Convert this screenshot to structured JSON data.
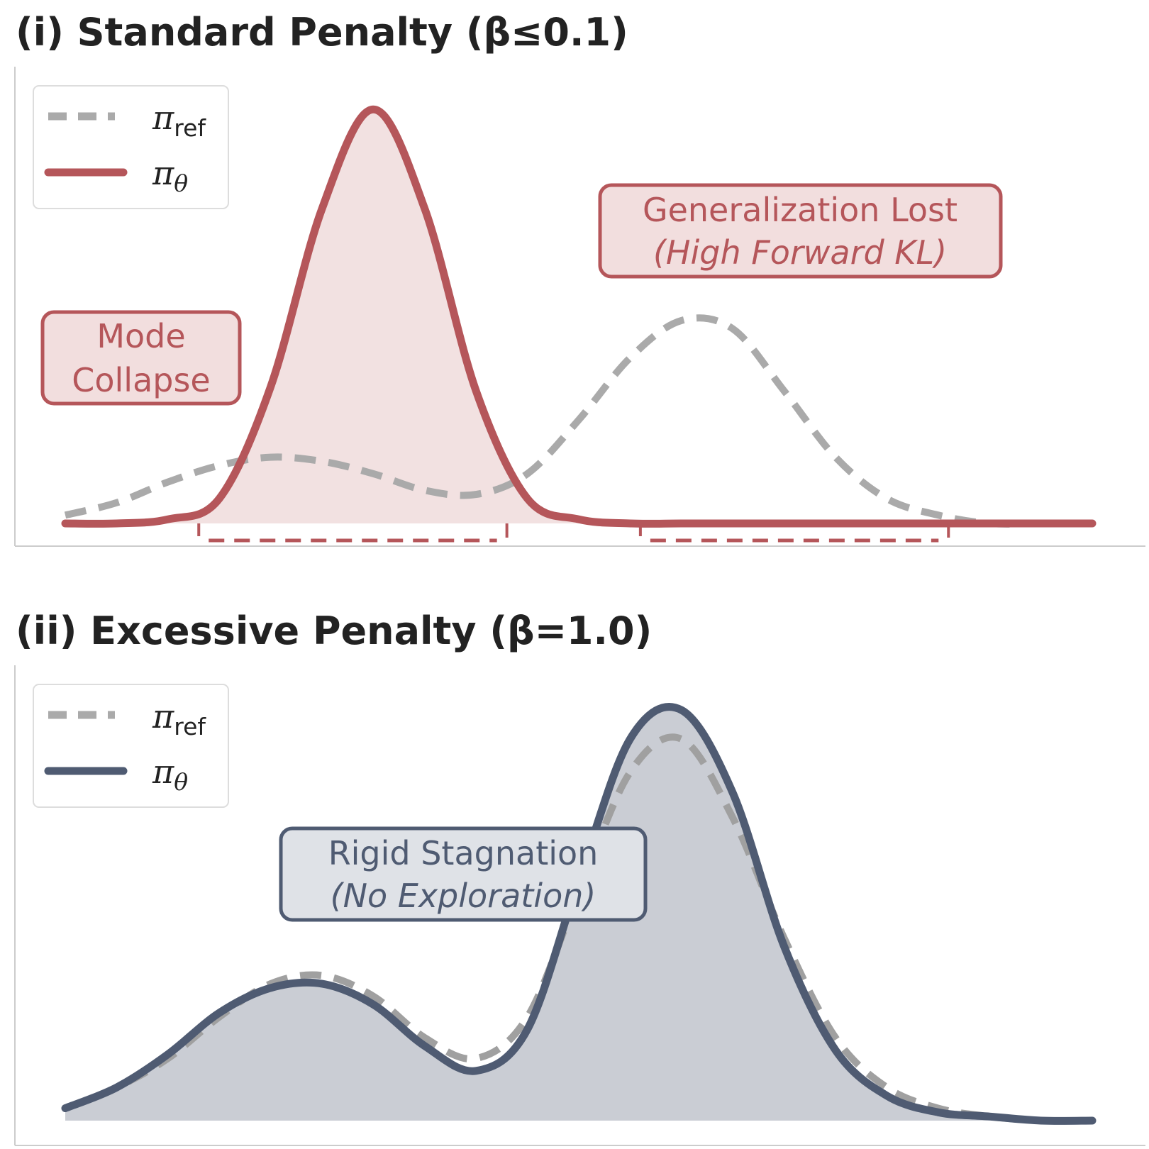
{
  "chart_data": [
    {
      "type": "line",
      "title": "(i) Standard Penalty (β≤0.1)",
      "xlim": [
        0,
        10
      ],
      "ylim": [
        0,
        1.05
      ],
      "grid": false,
      "legend_position": "top-left",
      "legend": [
        {
          "symbol": "π",
          "subscript": "ref",
          "style": "dashed",
          "color": "#aaaaaa"
        },
        {
          "symbol": "π",
          "subscript": "θ",
          "style": "solid",
          "color": "#b5565a"
        }
      ],
      "series": [
        {
          "key": "ref",
          "color": "#aaaaaa",
          "dashed": true,
          "x": [
            0.0,
            0.5,
            1.0,
            1.5,
            2.0,
            2.5,
            3.0,
            3.5,
            4.0,
            4.5,
            5.0,
            5.5,
            6.0,
            6.5,
            7.0,
            7.5,
            8.0,
            8.5,
            9.0,
            9.5,
            10.0
          ],
          "y": [
            0.02,
            0.05,
            0.1,
            0.14,
            0.16,
            0.15,
            0.12,
            0.08,
            0.07,
            0.12,
            0.25,
            0.4,
            0.49,
            0.47,
            0.32,
            0.16,
            0.06,
            0.02,
            0.0,
            0.0,
            0.0
          ]
        },
        {
          "key": "theta",
          "color": "#b5565a",
          "fill": "rgba(181,86,90,0.18)",
          "x": [
            0.0,
            0.5,
            1.0,
            1.5,
            2.0,
            2.5,
            3.0,
            3.5,
            4.0,
            4.5,
            5.0,
            5.5,
            6.0,
            6.5,
            7.0,
            7.5,
            8.0,
            8.5,
            9.0,
            9.5,
            10.0
          ],
          "y": [
            0.0,
            0.0,
            0.01,
            0.06,
            0.33,
            0.76,
            1.0,
            0.76,
            0.32,
            0.06,
            0.01,
            0.0,
            0.0,
            0.0,
            0.0,
            0.0,
            0.0,
            0.0,
            0.0,
            0.0,
            0.0
          ]
        }
      ],
      "brackets": [
        [
          1.3,
          4.3
        ],
        [
          5.6,
          8.6
        ]
      ],
      "annotations": [
        {
          "key": "mode",
          "lines": [
            "Mode",
            "Collapse"
          ],
          "italic_lines": [],
          "color": "#b5565a"
        },
        {
          "key": "gen",
          "lines": [
            "Generalization Lost"
          ],
          "italic_lines": [
            "(High Forward KL)"
          ],
          "color": "#b5565a"
        }
      ]
    },
    {
      "type": "line",
      "title": "(ii) Excessive Penalty (β=1.0)",
      "xlim": [
        0,
        10
      ],
      "ylim": [
        0,
        1.05
      ],
      "grid": false,
      "legend_position": "top-left",
      "legend": [
        {
          "symbol": "π",
          "subscript": "ref",
          "style": "dashed",
          "color": "#aaaaaa"
        },
        {
          "symbol": "π",
          "subscript": "θ",
          "style": "solid",
          "color": "#4f5b72"
        }
      ],
      "series": [
        {
          "key": "ref",
          "color": "#a0a0a0",
          "dashed": true,
          "x": [
            0.0,
            0.5,
            1.0,
            1.5,
            2.0,
            2.5,
            3.0,
            3.5,
            4.0,
            4.5,
            5.0,
            5.5,
            6.0,
            6.5,
            7.0,
            7.5,
            8.0,
            8.5,
            9.0,
            9.5,
            10.0
          ],
          "y": [
            0.03,
            0.08,
            0.15,
            0.25,
            0.33,
            0.35,
            0.3,
            0.2,
            0.15,
            0.25,
            0.55,
            0.84,
            0.92,
            0.73,
            0.44,
            0.2,
            0.08,
            0.03,
            0.01,
            0.0,
            0.0
          ]
        },
        {
          "key": "theta",
          "color": "#4f5b72",
          "fill": "rgba(79,91,114,0.30)",
          "x": [
            0.0,
            0.5,
            1.0,
            1.5,
            2.0,
            2.5,
            3.0,
            3.5,
            4.0,
            4.5,
            5.0,
            5.5,
            6.0,
            6.5,
            7.0,
            7.5,
            8.0,
            8.5,
            9.0,
            9.5,
            10.0
          ],
          "y": [
            0.03,
            0.08,
            0.16,
            0.26,
            0.32,
            0.33,
            0.28,
            0.18,
            0.12,
            0.22,
            0.58,
            0.92,
            0.99,
            0.79,
            0.42,
            0.17,
            0.06,
            0.02,
            0.01,
            0.0,
            0.0
          ]
        }
      ],
      "annotations": [
        {
          "key": "rigid",
          "lines": [
            "Rigid Stagnation"
          ],
          "italic_lines": [
            "(No Exploration)"
          ],
          "color": "#4f5b72"
        }
      ]
    }
  ]
}
